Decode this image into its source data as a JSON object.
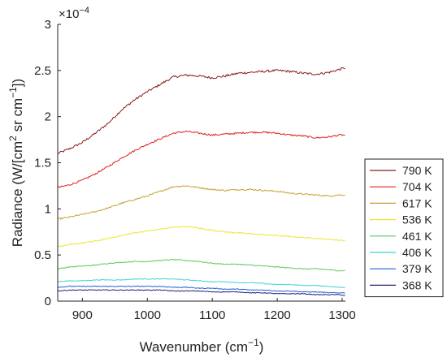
{
  "chart_data": {
    "type": "line",
    "title": "",
    "xlabel": "Wavenumber (cm",
    "xlabel_sup": "−1",
    "xlabel_end": ")",
    "ylabel_parts": [
      "Radiance (W/[cm",
      "2",
      " sr cm",
      "−1",
      "])"
    ],
    "y_exponent_base": "×10",
    "y_exponent_power": "−4",
    "xlim": [
      862,
      1305
    ],
    "ylim": [
      0,
      3
    ],
    "xticks": [
      900,
      1000,
      1100,
      1200,
      1300
    ],
    "yticks": [
      0,
      0.5,
      1,
      1.5,
      2,
      2.5,
      3
    ],
    "ytick_labels": [
      "0",
      "0.5",
      "1",
      "1.5",
      "2",
      "2.5",
      "3"
    ],
    "grid": false,
    "legend_position": "right",
    "series": [
      {
        "name": "790 K",
        "color": "#8b1a1a",
        "noise": 0.012,
        "points": [
          [
            862,
            1.6
          ],
          [
            880,
            1.65
          ],
          [
            900,
            1.72
          ],
          [
            920,
            1.82
          ],
          [
            940,
            1.93
          ],
          [
            960,
            2.07
          ],
          [
            980,
            2.18
          ],
          [
            1000,
            2.27
          ],
          [
            1020,
            2.35
          ],
          [
            1040,
            2.43
          ],
          [
            1060,
            2.45
          ],
          [
            1080,
            2.44
          ],
          [
            1100,
            2.42
          ],
          [
            1120,
            2.44
          ],
          [
            1140,
            2.47
          ],
          [
            1160,
            2.48
          ],
          [
            1180,
            2.49
          ],
          [
            1200,
            2.5
          ],
          [
            1220,
            2.49
          ],
          [
            1240,
            2.47
          ],
          [
            1260,
            2.46
          ],
          [
            1280,
            2.48
          ],
          [
            1295,
            2.51
          ],
          [
            1305,
            2.53
          ]
        ]
      },
      {
        "name": "704 K",
        "color": "#e02020",
        "noise": 0.009,
        "points": [
          [
            862,
            1.23
          ],
          [
            880,
            1.26
          ],
          [
            900,
            1.31
          ],
          [
            920,
            1.38
          ],
          [
            940,
            1.46
          ],
          [
            960,
            1.55
          ],
          [
            980,
            1.63
          ],
          [
            1000,
            1.7
          ],
          [
            1020,
            1.76
          ],
          [
            1040,
            1.82
          ],
          [
            1060,
            1.84
          ],
          [
            1080,
            1.82
          ],
          [
            1100,
            1.8
          ],
          [
            1120,
            1.81
          ],
          [
            1140,
            1.82
          ],
          [
            1160,
            1.83
          ],
          [
            1180,
            1.83
          ],
          [
            1200,
            1.82
          ],
          [
            1220,
            1.8
          ],
          [
            1240,
            1.79
          ],
          [
            1260,
            1.77
          ],
          [
            1280,
            1.78
          ],
          [
            1295,
            1.8
          ],
          [
            1305,
            1.8
          ]
        ]
      },
      {
        "name": "617 K",
        "color": "#c8a030",
        "noise": 0.008,
        "points": [
          [
            862,
            0.89
          ],
          [
            880,
            0.91
          ],
          [
            900,
            0.94
          ],
          [
            920,
            0.97
          ],
          [
            940,
            1.01
          ],
          [
            960,
            1.06
          ],
          [
            980,
            1.1
          ],
          [
            1000,
            1.14
          ],
          [
            1020,
            1.19
          ],
          [
            1040,
            1.24
          ],
          [
            1060,
            1.25
          ],
          [
            1080,
            1.23
          ],
          [
            1100,
            1.21
          ],
          [
            1120,
            1.2
          ],
          [
            1140,
            1.21
          ],
          [
            1160,
            1.21
          ],
          [
            1180,
            1.2
          ],
          [
            1200,
            1.19
          ],
          [
            1220,
            1.17
          ],
          [
            1240,
            1.16
          ],
          [
            1260,
            1.15
          ],
          [
            1280,
            1.14
          ],
          [
            1295,
            1.15
          ],
          [
            1305,
            1.15
          ]
        ]
      },
      {
        "name": "536 K",
        "color": "#e8e830",
        "noise": 0.006,
        "points": [
          [
            862,
            0.59
          ],
          [
            880,
            0.61
          ],
          [
            900,
            0.63
          ],
          [
            920,
            0.65
          ],
          [
            940,
            0.68
          ],
          [
            960,
            0.71
          ],
          [
            980,
            0.74
          ],
          [
            1000,
            0.76
          ],
          [
            1020,
            0.78
          ],
          [
            1040,
            0.8
          ],
          [
            1060,
            0.81
          ],
          [
            1080,
            0.79
          ],
          [
            1100,
            0.77
          ],
          [
            1120,
            0.75
          ],
          [
            1140,
            0.74
          ],
          [
            1160,
            0.73
          ],
          [
            1180,
            0.72
          ],
          [
            1200,
            0.71
          ],
          [
            1220,
            0.7
          ],
          [
            1240,
            0.69
          ],
          [
            1260,
            0.68
          ],
          [
            1280,
            0.67
          ],
          [
            1295,
            0.66
          ],
          [
            1305,
            0.66
          ]
        ]
      },
      {
        "name": "461 K",
        "color": "#5cc85c",
        "noise": 0.005,
        "points": [
          [
            862,
            0.35
          ],
          [
            880,
            0.37
          ],
          [
            900,
            0.38
          ],
          [
            920,
            0.39
          ],
          [
            940,
            0.41
          ],
          [
            960,
            0.42
          ],
          [
            980,
            0.43
          ],
          [
            1000,
            0.43
          ],
          [
            1020,
            0.44
          ],
          [
            1040,
            0.45
          ],
          [
            1060,
            0.44
          ],
          [
            1080,
            0.43
          ],
          [
            1100,
            0.41
          ],
          [
            1120,
            0.4
          ],
          [
            1140,
            0.4
          ],
          [
            1160,
            0.39
          ],
          [
            1180,
            0.38
          ],
          [
            1200,
            0.37
          ],
          [
            1220,
            0.36
          ],
          [
            1240,
            0.35
          ],
          [
            1260,
            0.35
          ],
          [
            1280,
            0.34
          ],
          [
            1295,
            0.33
          ],
          [
            1305,
            0.33
          ]
        ]
      },
      {
        "name": "406 K",
        "color": "#40d0d8",
        "noise": 0.004,
        "points": [
          [
            862,
            0.21
          ],
          [
            880,
            0.22
          ],
          [
            900,
            0.22
          ],
          [
            920,
            0.23
          ],
          [
            940,
            0.23
          ],
          [
            960,
            0.23
          ],
          [
            980,
            0.24
          ],
          [
            1000,
            0.24
          ],
          [
            1020,
            0.24
          ],
          [
            1040,
            0.24
          ],
          [
            1060,
            0.23
          ],
          [
            1080,
            0.22
          ],
          [
            1100,
            0.21
          ],
          [
            1120,
            0.21
          ],
          [
            1140,
            0.2
          ],
          [
            1160,
            0.2
          ],
          [
            1180,
            0.19
          ],
          [
            1200,
            0.18
          ],
          [
            1220,
            0.18
          ],
          [
            1240,
            0.17
          ],
          [
            1260,
            0.17
          ],
          [
            1280,
            0.16
          ],
          [
            1295,
            0.15
          ],
          [
            1305,
            0.15
          ]
        ]
      },
      {
        "name": "379 K",
        "color": "#2060d8",
        "noise": 0.004,
        "points": [
          [
            862,
            0.15
          ],
          [
            880,
            0.16
          ],
          [
            900,
            0.16
          ],
          [
            920,
            0.16
          ],
          [
            940,
            0.16
          ],
          [
            960,
            0.16
          ],
          [
            980,
            0.16
          ],
          [
            1000,
            0.16
          ],
          [
            1020,
            0.16
          ],
          [
            1040,
            0.15
          ],
          [
            1060,
            0.15
          ],
          [
            1080,
            0.14
          ],
          [
            1100,
            0.14
          ],
          [
            1120,
            0.13
          ],
          [
            1140,
            0.13
          ],
          [
            1160,
            0.12
          ],
          [
            1180,
            0.12
          ],
          [
            1200,
            0.11
          ],
          [
            1220,
            0.11
          ],
          [
            1240,
            0.1
          ],
          [
            1260,
            0.1
          ],
          [
            1280,
            0.09
          ],
          [
            1295,
            0.09
          ],
          [
            1305,
            0.09
          ]
        ]
      },
      {
        "name": "368 K",
        "color": "#202080",
        "noise": 0.004,
        "points": [
          [
            862,
            0.11
          ],
          [
            880,
            0.12
          ],
          [
            900,
            0.12
          ],
          [
            920,
            0.12
          ],
          [
            940,
            0.12
          ],
          [
            960,
            0.12
          ],
          [
            980,
            0.12
          ],
          [
            1000,
            0.12
          ],
          [
            1020,
            0.12
          ],
          [
            1040,
            0.11
          ],
          [
            1060,
            0.11
          ],
          [
            1080,
            0.11
          ],
          [
            1100,
            0.1
          ],
          [
            1120,
            0.1
          ],
          [
            1140,
            0.1
          ],
          [
            1160,
            0.09
          ],
          [
            1180,
            0.09
          ],
          [
            1200,
            0.08
          ],
          [
            1220,
            0.08
          ],
          [
            1240,
            0.08
          ],
          [
            1260,
            0.07
          ],
          [
            1280,
            0.07
          ],
          [
            1295,
            0.07
          ],
          [
            1305,
            0.06
          ]
        ]
      }
    ]
  }
}
